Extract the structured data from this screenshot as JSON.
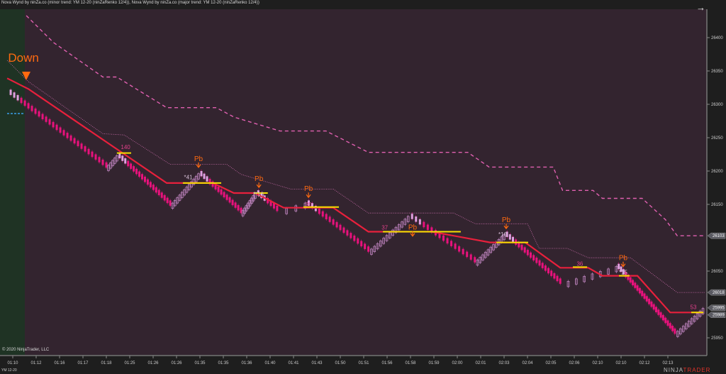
{
  "header": {
    "title": "Nova Wynd by ninZa.co (minor trend: YM 12-20 (ninZaRenko 12/4)), Nova Wynd by ninZa.co (major trend: YM 12-20 (ninZaRenko 12/4))",
    "nav_icon": "arrow-right-icon"
  },
  "footer": {
    "copyright": "© 2020 NinjaTrader, LLC",
    "instrument": "YM 12-20",
    "brand_a": "NINJA",
    "brand_b": "TRADER"
  },
  "colors": {
    "background": "#33242f",
    "trend_zone": "#1f3324",
    "minor_trend": "#e8203c",
    "major_dashed": "#e060b0",
    "dotted": "#d070b0",
    "down_brick": "#e8127c",
    "down_brick_light": "#e0a0e0",
    "up_brick": "#c88ac8",
    "pullback_line": "#f5e000",
    "signal": "#ff6a10",
    "label": "#e0408a"
  },
  "chart_data": {
    "type": "candlestick",
    "x_unit": "time-axis label index",
    "x_ticks": [
      "01:10",
      "01:12",
      "01:16",
      "01:17",
      "01:18",
      "01:25",
      "01:26",
      "01:26",
      "01:35",
      "01:35",
      "01:36",
      "01:40",
      "01:41",
      "01:43",
      "01:50",
      "01:51",
      "01:56",
      "01:58",
      "01:59",
      "02:00",
      "02:01",
      "02:03",
      "02:04",
      "02:05",
      "02:06",
      "02:10",
      "02:10",
      "02:12",
      "02:13"
    ],
    "y_ticks": [
      26400,
      26350,
      26300,
      26250,
      26200,
      26150,
      26050,
      25950
    ],
    "y_range": [
      25935,
      26450
    ],
    "price_tags": [
      {
        "value": "26103",
        "color": "#5a5a62"
      },
      {
        "value": "26018",
        "color": "#5a5a62"
      },
      {
        "value": "25995",
        "color": "#5a5a62"
      },
      {
        "value": "25989",
        "color": "#5a5a62"
      }
    ],
    "brick_size": 4,
    "price_pivots": [
      [
        -0.24,
        26318
      ],
      [
        4.0,
        26205
      ],
      [
        4.45,
        26223
      ],
      [
        6.73,
        26148
      ],
      [
        7.94,
        26196
      ],
      [
        9.76,
        26137
      ],
      [
        10.36,
        26167
      ],
      [
        11.3,
        26140
      ],
      [
        12.5,
        26152
      ],
      [
        15.2,
        26079
      ],
      [
        16.9,
        26132
      ],
      [
        19.75,
        26063
      ],
      [
        21.0,
        26105
      ],
      [
        23.4,
        26031
      ],
      [
        25.8,
        26057
      ],
      [
        28.3,
        25956
      ],
      [
        29.5,
        25994
      ]
    ],
    "minor_trend_line": [
      [
        -0.24,
        26339
      ],
      [
        0.67,
        26323
      ],
      [
        6.58,
        26182
      ],
      [
        8.55,
        26182
      ],
      [
        9.45,
        26167
      ],
      [
        10.36,
        26167
      ],
      [
        11.58,
        26145
      ],
      [
        13.7,
        26145
      ],
      [
        15.2,
        26109
      ],
      [
        17.9,
        26109
      ],
      [
        20.4,
        26093
      ],
      [
        21.9,
        26093
      ],
      [
        23.4,
        26055
      ],
      [
        24.6,
        26055
      ],
      [
        25.2,
        26043
      ],
      [
        26.7,
        26043
      ],
      [
        28.1,
        25988
      ],
      [
        29.5,
        25988
      ]
    ],
    "major_trend_line": [
      [
        0.58,
        26433
      ],
      [
        1.73,
        26393
      ],
      [
        3.85,
        26341
      ],
      [
        4.45,
        26341
      ],
      [
        6.58,
        26295
      ],
      [
        8.7,
        26295
      ],
      [
        9.45,
        26281
      ],
      [
        11.42,
        26260
      ],
      [
        13.39,
        26260
      ],
      [
        15.2,
        26228
      ],
      [
        19.45,
        26228
      ],
      [
        20.36,
        26206
      ],
      [
        23.1,
        26206
      ],
      [
        23.5,
        26171
      ],
      [
        24.8,
        26171
      ],
      [
        25.2,
        26159
      ],
      [
        26.9,
        26159
      ],
      [
        27.9,
        26127
      ],
      [
        28.4,
        26103
      ],
      [
        29.6,
        26103
      ]
    ],
    "dotted_line": [
      [
        -0.24,
        26366
      ],
      [
        0.67,
        26334
      ],
      [
        3.85,
        26256
      ],
      [
        4.76,
        26254
      ],
      [
        6.73,
        26210
      ],
      [
        9.15,
        26210
      ],
      [
        9.76,
        26195
      ],
      [
        11.88,
        26173
      ],
      [
        13.7,
        26173
      ],
      [
        15.2,
        26137
      ],
      [
        18.85,
        26137
      ],
      [
        19.76,
        26121
      ],
      [
        22.0,
        26121
      ],
      [
        22.5,
        26084
      ],
      [
        23.7,
        26084
      ],
      [
        24.6,
        26070
      ],
      [
        26.4,
        26070
      ],
      [
        27.9,
        26031
      ],
      [
        28.4,
        26018
      ],
      [
        29.6,
        26018
      ]
    ],
    "pullback_lines": [
      [
        4.45,
        5.06,
        26227
      ],
      [
        7.27,
        8.91,
        26182
      ],
      [
        10.3,
        10.9,
        26167
      ],
      [
        12.42,
        13.94,
        26146
      ],
      [
        15.82,
        19.15,
        26109
      ],
      [
        20.67,
        22.03,
        26093
      ],
      [
        23.94,
        24.55,
        26056
      ],
      [
        25.91,
        26.36,
        26043
      ],
      [
        29.0,
        29.52,
        25988
      ]
    ],
    "signals": [
      {
        "text": "Pb",
        "x": 7.94,
        "y": 26215
      },
      {
        "text": "Pb",
        "x": 10.52,
        "y": 26185
      },
      {
        "text": "Pb",
        "x": 12.64,
        "y": 26170
      },
      {
        "text": "Pb",
        "x": 17.09,
        "y": 26112
      },
      {
        "text": "Pb",
        "x": 21.09,
        "y": 26097
      },
      {
        "text": "Pb",
        "x": 26.09,
        "y": 26042
      }
    ],
    "labels": [
      {
        "text": "140",
        "x": 4.82,
        "y": 26233
      },
      {
        "text": "*41",
        "x": 7.5,
        "y": 26188
      },
      {
        "text": "**16",
        "x": 10.5,
        "y": 26162
      },
      {
        "text": "20",
        "x": 12.64,
        "y": 26147
      },
      {
        "text": "37",
        "x": 15.9,
        "y": 26112
      },
      {
        "text": "*16",
        "x": 20.94,
        "y": 26102
      },
      {
        "text": "36",
        "x": 24.24,
        "y": 26058
      },
      {
        "text": "*15",
        "x": 26.09,
        "y": 26045
      },
      {
        "text": "53",
        "x": 29.09,
        "y": 25993
      }
    ],
    "trend_label": {
      "text": "Down",
      "x": -0.2,
      "y": 26364
    }
  }
}
